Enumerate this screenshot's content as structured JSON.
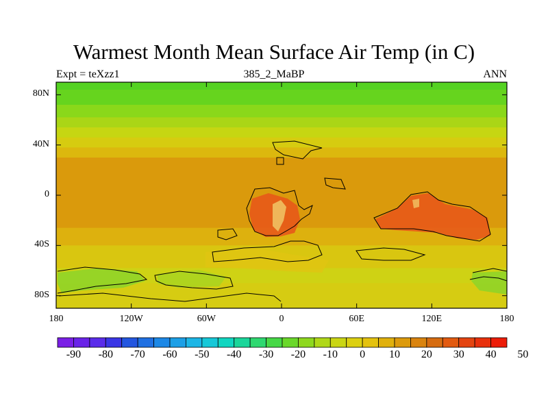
{
  "title": "Warmest Month Mean Surface Air Temp (in C)",
  "subtitle_left": "Expt = teXzz1",
  "subtitle_center": "385_2_MaBP",
  "subtitle_right": "ANN",
  "y_ticks": [
    "80N",
    "40N",
    "0",
    "40S",
    "80S"
  ],
  "x_ticks": [
    "180",
    "120W",
    "60W",
    "0",
    "60E",
    "120E",
    "180"
  ],
  "colorbar": {
    "labels": [
      "-90",
      "-80",
      "-70",
      "-60",
      "-50",
      "-40",
      "-30",
      "-20",
      "-10",
      "0",
      "10",
      "20",
      "30",
      "40",
      "50"
    ],
    "colors": [
      "#7a1fe6",
      "#6a23e8",
      "#5a2cea",
      "#3a36e6",
      "#2356e0",
      "#1f70e2",
      "#1c88e6",
      "#1c9fe6",
      "#1cb6e6",
      "#16c8d8",
      "#10d6c0",
      "#1ad69a",
      "#2ed870",
      "#46d846",
      "#6ad82a",
      "#8ed81e",
      "#b0d818",
      "#cad614",
      "#dcd010",
      "#e4c20e",
      "#e0b00c",
      "#dc9a0c",
      "#da840e",
      "#d66c10",
      "#e25a10",
      "#e44410",
      "#e8300c",
      "#ec1c08"
    ]
  },
  "map": {
    "lat_bands": [
      {
        "lat_from": 90,
        "lat_to": 84,
        "color": "#54d222"
      },
      {
        "lat_from": 84,
        "lat_to": 72,
        "color": "#66d41e"
      },
      {
        "lat_from": 72,
        "lat_to": 62,
        "color": "#8ad81a"
      },
      {
        "lat_from": 62,
        "lat_to": 54,
        "color": "#aad616"
      },
      {
        "lat_from": 54,
        "lat_to": 46,
        "color": "#c6d612"
      },
      {
        "lat_from": 46,
        "lat_to": 38,
        "color": "#d6cc10"
      },
      {
        "lat_from": 38,
        "lat_to": 30,
        "color": "#dcb80e"
      },
      {
        "lat_from": 30,
        "lat_to": -26,
        "color": "#da9a0c"
      },
      {
        "lat_from": -26,
        "lat_to": -40,
        "color": "#ddb10e"
      },
      {
        "lat_from": -40,
        "lat_to": -58,
        "color": "#d9c610"
      },
      {
        "lat_from": -58,
        "lat_to": -70,
        "color": "#cfd214"
      },
      {
        "lat_from": -70,
        "lat_to": -90,
        "color": "#d6cc12"
      }
    ],
    "hot_color": "#e8551a",
    "hot_core_color": "#f3c070",
    "cool_color": "#8ed42a"
  }
}
